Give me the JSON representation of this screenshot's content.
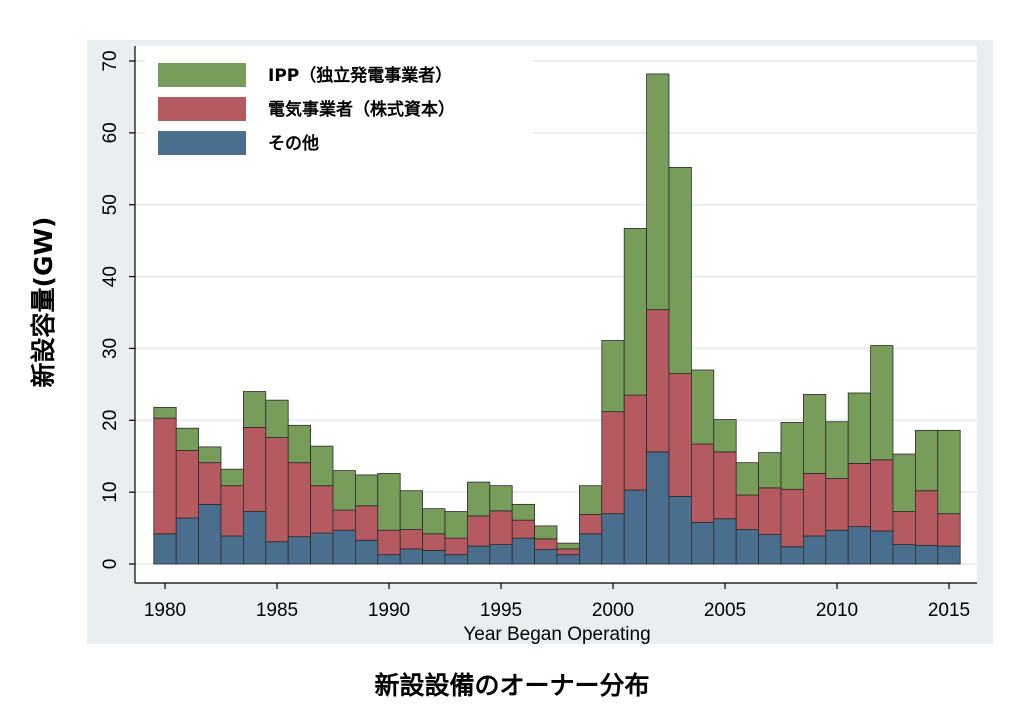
{
  "caption": "新設設備のオーナー分布",
  "chart_data": {
    "type": "bar",
    "stacked": true,
    "xlabel": "Year Began Operating",
    "ylabel": "新設容量(GW)",
    "ylim": [
      0,
      70
    ],
    "yticks": [
      0,
      10,
      20,
      30,
      40,
      50,
      60,
      70
    ],
    "xticks": [
      1980,
      1985,
      1990,
      1995,
      2000,
      2005,
      2010,
      2015
    ],
    "grid": true,
    "legend_position": "top-left",
    "categories": [
      1980,
      1981,
      1982,
      1983,
      1984,
      1985,
      1986,
      1987,
      1988,
      1989,
      1990,
      1991,
      1992,
      1993,
      1994,
      1995,
      1996,
      1997,
      1998,
      1999,
      2000,
      2001,
      2002,
      2003,
      2004,
      2005,
      2006,
      2007,
      2008,
      2009,
      2010,
      2011,
      2012,
      2013,
      2014,
      2015
    ],
    "series": [
      {
        "name": "その他",
        "color": "#4a6e8e",
        "values": [
          4.2,
          6.4,
          8.3,
          3.9,
          7.3,
          3.1,
          3.8,
          4.3,
          4.7,
          3.3,
          1.3,
          2.1,
          1.9,
          1.3,
          2.5,
          2.7,
          3.6,
          2.0,
          1.3,
          4.2,
          7.0,
          10.3,
          15.6,
          9.4,
          5.8,
          6.3,
          4.8,
          4.1,
          2.4,
          3.9,
          4.7,
          5.2,
          4.6,
          2.7,
          2.6,
          2.5
        ]
      },
      {
        "name": "電気事業者（株式資本）",
        "color": "#b55a60",
        "values": [
          16.1,
          9.4,
          5.8,
          7.0,
          11.7,
          14.5,
          10.3,
          6.6,
          2.8,
          4.8,
          3.4,
          2.7,
          2.3,
          2.3,
          4.2,
          4.7,
          2.5,
          1.5,
          0.8,
          2.7,
          14.2,
          13.2,
          19.8,
          17.1,
          10.9,
          9.3,
          4.8,
          6.5,
          8.0,
          8.7,
          7.2,
          8.8,
          9.9,
          4.6,
          7.6,
          4.5
        ]
      },
      {
        "name": "IPP（独立発電事業者）",
        "color": "#789c59",
        "values": [
          1.5,
          3.1,
          2.2,
          2.3,
          5.0,
          5.2,
          5.2,
          5.5,
          5.5,
          4.3,
          7.9,
          5.4,
          3.5,
          3.7,
          4.7,
          3.5,
          2.2,
          1.8,
          0.8,
          4.0,
          9.9,
          23.2,
          32.8,
          28.7,
          10.3,
          4.5,
          4.5,
          4.9,
          9.3,
          11.0,
          7.9,
          9.8,
          15.9,
          8.0,
          8.4,
          11.6
        ]
      }
    ]
  }
}
